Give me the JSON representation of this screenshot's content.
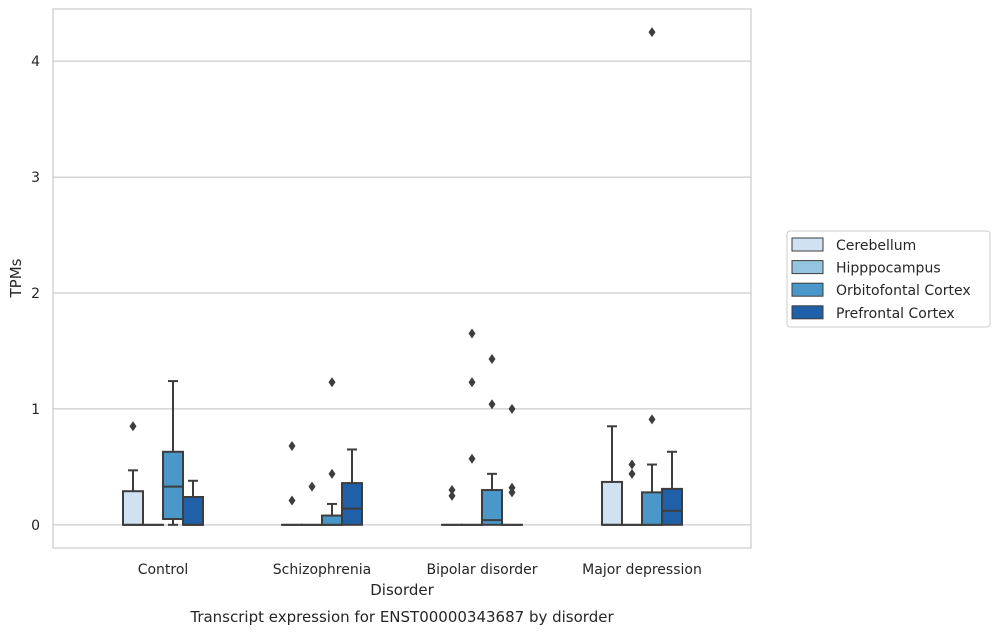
{
  "chart_data": {
    "type": "box",
    "title": "Transcript expression for ENST00000343687 by disorder",
    "xlabel": "Disorder",
    "ylabel": "TPMs",
    "ylim": [
      -0.2,
      4.45
    ],
    "yticks": [
      0,
      1,
      2,
      3,
      4
    ],
    "grid": "horizontal",
    "legend_placement": "right",
    "categories": [
      "Control",
      "Schizophrenia",
      "Bipolar disorder",
      "Major depression"
    ],
    "series": [
      {
        "name": "Cerebellum",
        "color": "#d0e1f2",
        "boxes": [
          {
            "min": 0,
            "q1": 0,
            "median": 0,
            "q3": 0.29,
            "max": 0.47,
            "outliers": [
              0.85
            ]
          },
          {
            "min": 0,
            "q1": 0,
            "median": 0,
            "q3": 0,
            "max": 0,
            "outliers": [
              0.68,
              0.21
            ]
          },
          {
            "min": 0,
            "q1": 0,
            "median": 0,
            "q3": 0,
            "max": 0,
            "outliers": [
              0.3,
              0.25
            ]
          },
          {
            "min": 0,
            "q1": 0,
            "median": 0,
            "q3": 0.37,
            "max": 0.85,
            "outliers": []
          }
        ]
      },
      {
        "name": "Hipppocampus",
        "color": "#94c4df",
        "boxes": [
          {
            "min": 0,
            "q1": 0,
            "median": 0,
            "q3": 0,
            "max": 0,
            "outliers": []
          },
          {
            "min": 0,
            "q1": 0,
            "median": 0,
            "q3": 0,
            "max": 0,
            "outliers": [
              0.33
            ]
          },
          {
            "min": 0,
            "q1": 0,
            "median": 0,
            "q3": 0,
            "max": 0,
            "outliers": [
              1.65,
              1.23,
              0.57
            ]
          },
          {
            "min": 0,
            "q1": 0,
            "median": 0,
            "q3": 0,
            "max": 0,
            "outliers": [
              0.52,
              0.44
            ]
          }
        ]
      },
      {
        "name": "Orbitofontal Cortex",
        "color": "#4a98c9",
        "boxes": [
          {
            "min": 0,
            "q1": 0.05,
            "median": 0.33,
            "q3": 0.63,
            "max": 1.24,
            "outliers": []
          },
          {
            "min": 0,
            "q1": 0,
            "median": 0,
            "q3": 0.08,
            "max": 0.18,
            "outliers": [
              1.23,
              0.44
            ]
          },
          {
            "min": 0,
            "q1": 0,
            "median": 0.04,
            "q3": 0.3,
            "max": 0.44,
            "outliers": [
              1.43,
              1.04
            ]
          },
          {
            "min": 0,
            "q1": 0,
            "median": 0,
            "q3": 0.28,
            "max": 0.52,
            "outliers": [
              0.91,
              4.25
            ]
          }
        ]
      },
      {
        "name": "Prefrontal Cortex",
        "color": "#2060a8",
        "boxes": [
          {
            "min": 0,
            "q1": 0,
            "median": 0,
            "q3": 0.24,
            "max": 0.38,
            "outliers": []
          },
          {
            "min": 0,
            "q1": 0,
            "median": 0.14,
            "q3": 0.36,
            "max": 0.65,
            "outliers": []
          },
          {
            "min": 0,
            "q1": 0,
            "median": 0,
            "q3": 0,
            "max": 0,
            "outliers": [
              1.0,
              0.32,
              0.28
            ]
          },
          {
            "min": 0,
            "q1": 0,
            "median": 0.12,
            "q3": 0.31,
            "max": 0.63,
            "outliers": []
          }
        ]
      }
    ]
  }
}
